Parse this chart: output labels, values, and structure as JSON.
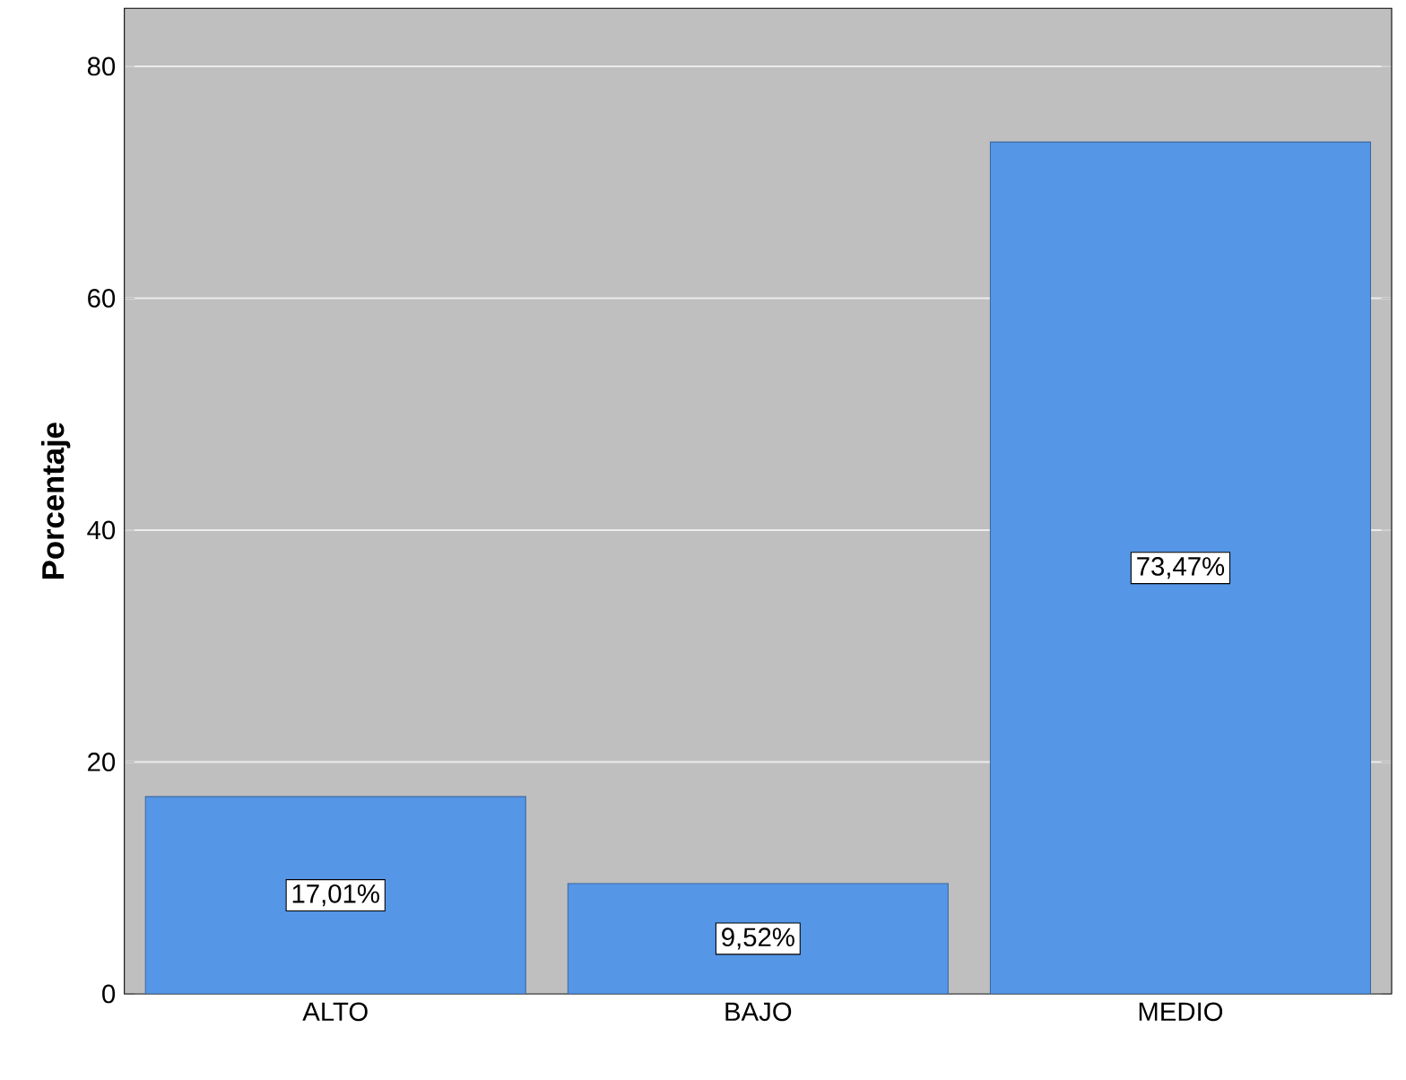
{
  "chart_data": {
    "type": "bar",
    "ylabel": "Porcentaje",
    "categories": [
      "ALTO",
      "BAJO",
      "MEDIO"
    ],
    "values": [
      17.01,
      9.52,
      73.47
    ],
    "value_labels": [
      "17,01%",
      "9,52%",
      "73,47%"
    ],
    "color": "#5596e6",
    "ylim": [
      0,
      85
    ],
    "yticks": [
      0,
      20,
      40,
      60,
      80
    ],
    "grid": "y"
  }
}
